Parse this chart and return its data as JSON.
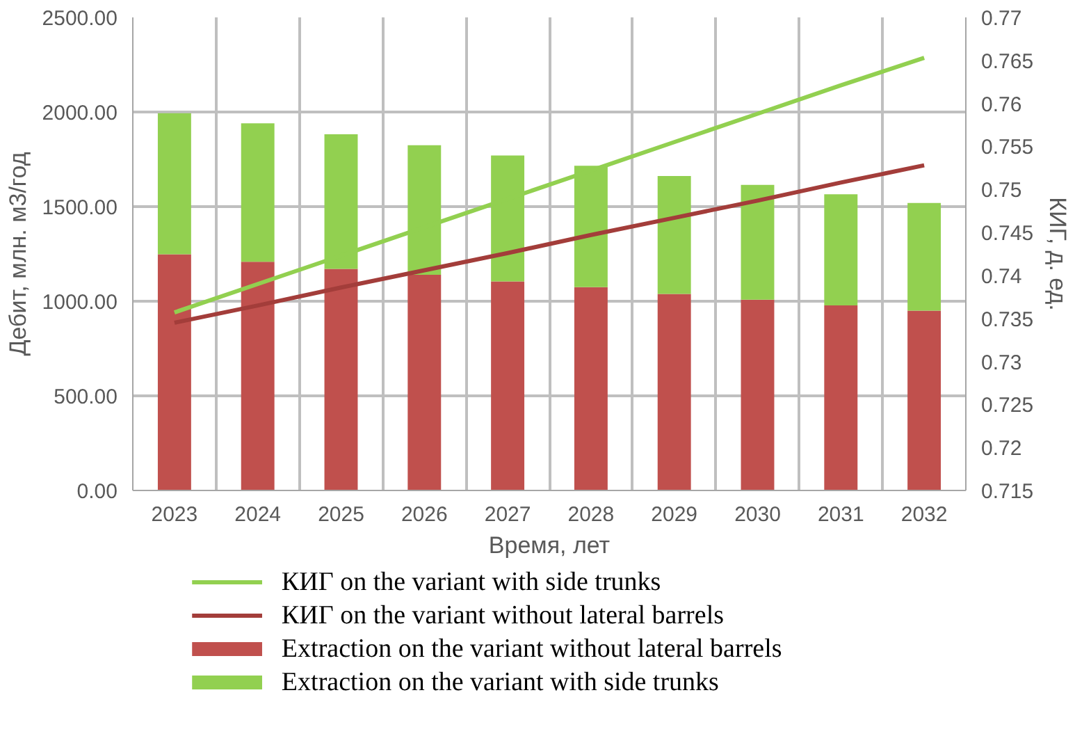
{
  "chart_data": {
    "type": "bar",
    "stacked": true,
    "categories": [
      "2023",
      "2024",
      "2025",
      "2026",
      "2027",
      "2028",
      "2029",
      "2030",
      "2031",
      "2032"
    ],
    "xlabel": "Время, лет",
    "ylabel": "Дебит, млн. м3/год",
    "y2label": "КИГ, д. ед.",
    "ylim": [
      0,
      2500
    ],
    "yticks": [
      {
        "value": 0,
        "label": "0.00"
      },
      {
        "value": 500,
        "label": "500.00"
      },
      {
        "value": 1000,
        "label": "1000.00"
      },
      {
        "value": 1500,
        "label": "1500.00"
      },
      {
        "value": 2000,
        "label": "2000.00"
      },
      {
        "value": 2500,
        "label": "2500.00"
      }
    ],
    "y2lim": [
      0.715,
      0.77
    ],
    "y2ticks": [
      0.715,
      0.72,
      0.725,
      0.73,
      0.735,
      0.74,
      0.745,
      0.75,
      0.755,
      0.76,
      0.765,
      0.77
    ],
    "grid": true,
    "legend": "bottom",
    "series": [
      {
        "name": "КИГ on the variant with side trunks",
        "type": "line",
        "axis": "y2",
        "color": "#92d050",
        "values": [
          0.7357,
          0.739,
          0.7423,
          0.7456,
          0.7489,
          0.7522,
          0.7555,
          0.7588,
          0.7621,
          0.7653
        ]
      },
      {
        "name": "КИГ on the variant without lateral barrels",
        "type": "line",
        "axis": "y2",
        "color": "#a33d3a",
        "values": [
          0.7345,
          0.7365,
          0.7386,
          0.7406,
          0.7426,
          0.7447,
          0.7467,
          0.7487,
          0.7508,
          0.7528
        ]
      },
      {
        "name": "Extraction on the variant without lateral barrels",
        "color": "#c0504d",
        "values": [
          1248,
          1209,
          1171,
          1140,
          1105,
          1074,
          1039,
          1008,
          978,
          950
        ]
      },
      {
        "name": "Extraction on the variant with side trunks",
        "color": "#92d050",
        "values": [
          746,
          731,
          711,
          684,
          665,
          642,
          623,
          607,
          587,
          569
        ]
      }
    ]
  }
}
